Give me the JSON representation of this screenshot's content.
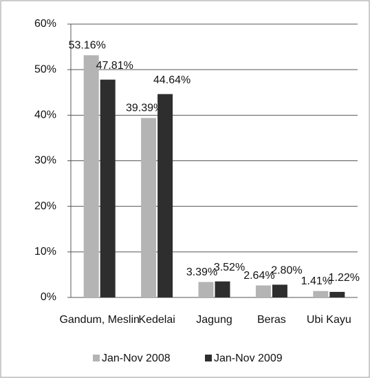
{
  "chart_data": {
    "type": "bar",
    "categories": [
      "Gandum, Meslin",
      "Kedelai",
      "Jagung",
      "Beras",
      "Ubi Kayu"
    ],
    "series": [
      {
        "name": "Jan-Nov 2008",
        "color": "#b4b4b4",
        "values": [
          53.16,
          39.39,
          3.39,
          2.64,
          1.41
        ],
        "value_labels": [
          "53.16%",
          "39.39%",
          "3.39%",
          "2.64%",
          "1.41%"
        ]
      },
      {
        "name": "Jan-Nov 2009",
        "color": "#2e2e2e",
        "values": [
          47.81,
          44.64,
          3.52,
          2.8,
          1.22
        ],
        "value_labels": [
          "47.81%",
          "44.64%",
          "3.52%",
          "2.80%",
          "1.22%"
        ]
      }
    ],
    "ylim": [
      0,
      60
    ],
    "yticks": [
      {
        "value": 0,
        "label": "0%"
      },
      {
        "value": 10,
        "label": "10%"
      },
      {
        "value": 20,
        "label": "20%"
      },
      {
        "value": 30,
        "label": "30%"
      },
      {
        "value": 40,
        "label": "40%"
      },
      {
        "value": 50,
        "label": "50%"
      },
      {
        "value": 60,
        "label": "60%"
      }
    ],
    "grid": true,
    "legend": "bottom"
  }
}
